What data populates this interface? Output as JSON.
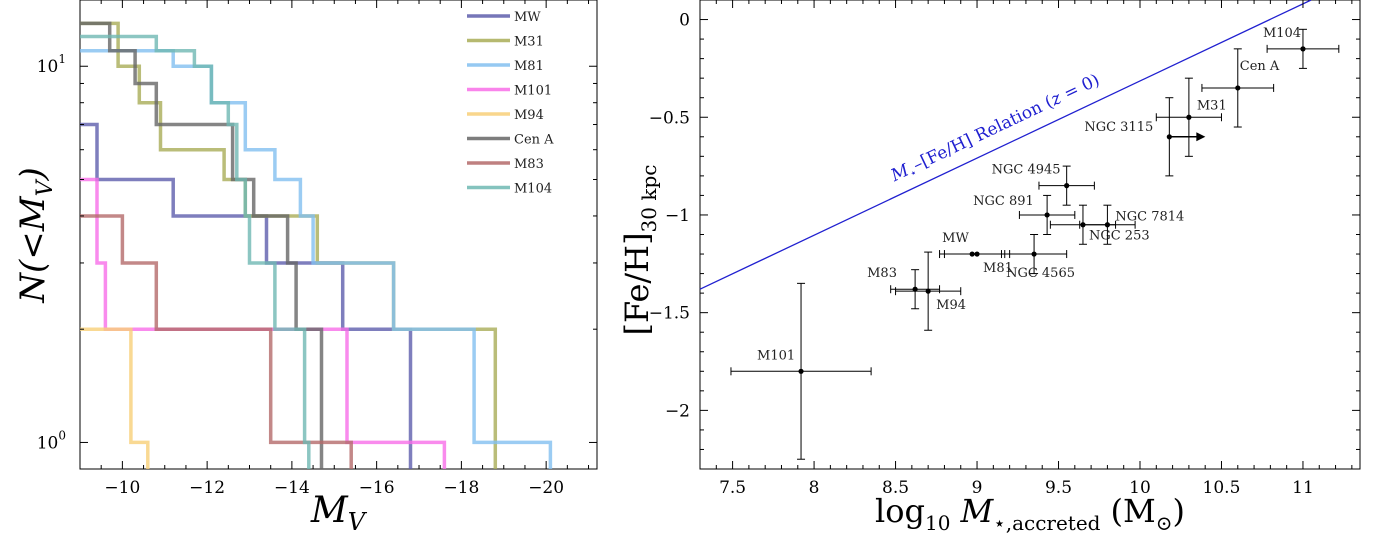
{
  "chart_data": [
    {
      "type": "line",
      "subtype": "step",
      "xlabel": "M",
      "xlabel_sub": "V",
      "ylabel": "N(<M",
      "ylabel_sub": "V",
      "ylabel_tail": ")",
      "xlim": [
        -9,
        -21.2
      ],
      "ylim": [
        0.85,
        15
      ],
      "y_scale": "log",
      "x_ticks": [
        -10,
        -12,
        -14,
        -16,
        -18,
        -20
      ],
      "x_tick_labels": [
        "−10",
        "−12",
        "−14",
        "−16",
        "−18",
        "−20"
      ],
      "y_tick_labels": [
        {
          "value": 10,
          "base": "10",
          "exp": "1"
        },
        {
          "value": 1,
          "base": "10",
          "exp": "0"
        }
      ],
      "legend_position": "top-right",
      "series": [
        {
          "name": "MW",
          "color": "#5e5eac",
          "steps": [
            [
              -9.0,
              7
            ],
            [
              -9.4,
              5
            ],
            [
              -11.2,
              4
            ],
            [
              -13.4,
              3
            ],
            [
              -15.2,
              2
            ],
            [
              -16.8,
              1
            ]
          ],
          "end": -16.8
        },
        {
          "name": "M31",
          "color": "#a9ad57",
          "steps": [
            [
              -9.0,
              13
            ],
            [
              -9.9,
              10
            ],
            [
              -10.4,
              8
            ],
            [
              -10.9,
              6
            ],
            [
              -12.4,
              5
            ],
            [
              -12.9,
              4
            ],
            [
              -14.6,
              3
            ],
            [
              -16.4,
              2
            ],
            [
              -18.8,
              1
            ]
          ],
          "end": -18.8
        },
        {
          "name": "M81",
          "color": "#82bff0",
          "steps": [
            [
              -9.0,
              11
            ],
            [
              -11.2,
              10
            ],
            [
              -12.1,
              8
            ],
            [
              -12.9,
              6
            ],
            [
              -13.6,
              5
            ],
            [
              -14.2,
              4
            ],
            [
              -14.5,
              3
            ],
            [
              -16.4,
              2
            ],
            [
              -18.3,
              1
            ]
          ],
          "end": -20.1
        },
        {
          "name": "M101",
          "color": "#f86ee8",
          "steps": [
            [
              -9.0,
              5
            ],
            [
              -9.4,
              3
            ],
            [
              -9.6,
              2
            ],
            [
              -15.3,
              1
            ]
          ],
          "end": -17.6
        },
        {
          "name": "M94",
          "color": "#f8cf78",
          "steps": [
            [
              -9.0,
              2
            ],
            [
              -10.2,
              1
            ]
          ],
          "end": -10.6
        },
        {
          "name": "Cen A",
          "color": "#666666",
          "steps": [
            [
              -9.0,
              13
            ],
            [
              -9.7,
              11
            ],
            [
              -10.3,
              9
            ],
            [
              -10.8,
              7
            ],
            [
              -12.6,
              5
            ],
            [
              -13.1,
              4
            ],
            [
              -13.9,
              3
            ],
            [
              -14.1,
              2
            ],
            [
              -14.7,
              1
            ]
          ],
          "end": -14.7
        },
        {
          "name": "M83",
          "color": "#b46a6a",
          "steps": [
            [
              -9.0,
              4
            ],
            [
              -10.0,
              3
            ],
            [
              -10.8,
              2
            ],
            [
              -13.5,
              1
            ]
          ],
          "end": -15.4
        },
        {
          "name": "M104",
          "color": "#6fb8b3",
          "steps": [
            [
              -9.0,
              12
            ],
            [
              -10.8,
              11
            ],
            [
              -11.7,
              10
            ],
            [
              -12.1,
              8
            ],
            [
              -12.5,
              7
            ],
            [
              -12.7,
              5
            ],
            [
              -12.9,
              4
            ],
            [
              -13.0,
              3
            ],
            [
              -13.6,
              2
            ],
            [
              -14.3,
              1
            ]
          ],
          "end": -14.4
        }
      ]
    },
    {
      "type": "scatter",
      "xlabel_parts": [
        "log",
        "10",
        "M",
        "⋆,accreted",
        "(M",
        "⊙",
        ")"
      ],
      "ylabel_parts": [
        "[Fe/H]",
        "30 kpc"
      ],
      "xlim": [
        7.3,
        11.35
      ],
      "ylim": [
        -2.3,
        0.1
      ],
      "x_ticks": [
        7.5,
        8,
        8.5,
        9,
        9.5,
        10,
        10.5,
        11
      ],
      "x_tick_labels": [
        "7.5",
        "8",
        "8.5",
        "9",
        "9.5",
        "10",
        "10.5",
        "11"
      ],
      "y_ticks": [
        0,
        -0.5,
        -1,
        -1.5,
        -2
      ],
      "y_tick_labels": [
        "0",
        "−0.5",
        "−1",
        "−1.5",
        "−2"
      ],
      "relation": {
        "label_parts": [
          "M",
          "⋆",
          "–[Fe/H] Relation (",
          "z",
          " = 0)"
        ],
        "color": "#2020d0",
        "points": [
          [
            7.3,
            -1.38
          ],
          [
            11.05,
            0.1
          ]
        ]
      },
      "points": [
        {
          "name": "MW",
          "x": 8.97,
          "y": -1.2,
          "xerr": 0.2,
          "yerr": 0.0
        },
        {
          "name": "M31",
          "x": 10.3,
          "y": -0.5,
          "xerr": 0.2,
          "yerr": 0.2
        },
        {
          "name": "M81",
          "x": 9.0,
          "y": -1.2,
          "xerr": 0.2,
          "yerr": 0.0
        },
        {
          "name": "M101",
          "x": 7.92,
          "y": -1.8,
          "xerr": 0.43,
          "yerr": 0.45
        },
        {
          "name": "M94",
          "x": 8.7,
          "y": -1.39,
          "xerr": 0.2,
          "yerr": 0.2
        },
        {
          "name": "M83",
          "x": 8.62,
          "y": -1.38,
          "xerr": 0.15,
          "yerr": 0.1
        },
        {
          "name": "NGC 4565",
          "x": 9.35,
          "y": -1.2,
          "xerr": 0.2,
          "yerr": 0.1
        },
        {
          "name": "NGC 253",
          "x": 9.65,
          "y": -1.05,
          "xerr": 0.2,
          "yerr": 0.1
        },
        {
          "name": "NGC 891",
          "x": 9.43,
          "y": -1.0,
          "xerr": 0.17,
          "yerr": 0.1
        },
        {
          "name": "NGC 4945",
          "x": 9.55,
          "y": -0.85,
          "xerr": 0.17,
          "yerr": 0.1
        },
        {
          "name": "NGC 7814",
          "x": 9.8,
          "y": -1.05,
          "xerr": 0.17,
          "yerr": 0.1
        },
        {
          "name": "NGC 3115",
          "x": 10.18,
          "y": -0.6,
          "xerr": 0.0,
          "yerr": 0.2,
          "arrow": "right"
        },
        {
          "name": "Cen A",
          "x": 10.6,
          "y": -0.35,
          "xerr": 0.22,
          "yerr": 0.2
        },
        {
          "name": "M104",
          "x": 11.0,
          "y": -0.15,
          "xerr": 0.22,
          "yerr": 0.1
        }
      ]
    }
  ]
}
